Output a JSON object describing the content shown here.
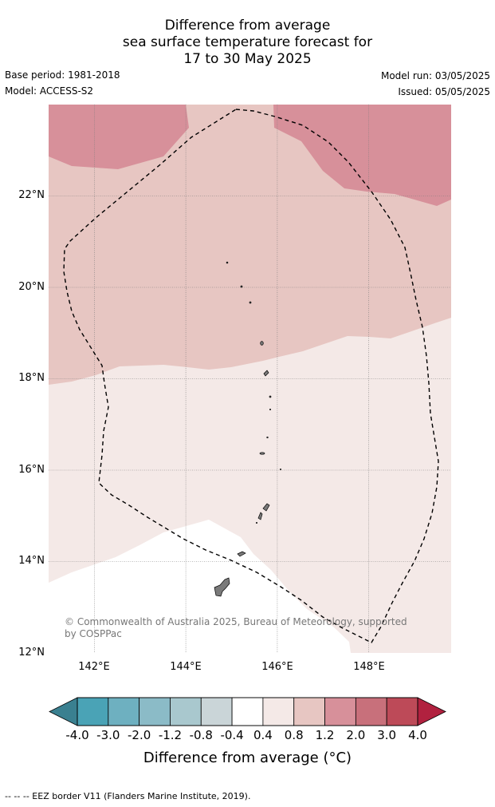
{
  "title": {
    "line1": "Difference from average",
    "line2": "sea surface temperature forecast for",
    "line3": "17 to 30 May 2025"
  },
  "meta": {
    "base_period": "Base period: 1981-2018",
    "model": "Model: ACCESS-S2",
    "model_run": "Model run: 03/05/2025",
    "issued": "Issued: 05/05/2025"
  },
  "map": {
    "lon_range": [
      141.0,
      149.8
    ],
    "lat_range": [
      12.0,
      24.0
    ],
    "lat_labels": [
      {
        "lat": 22,
        "text": "22°N"
      },
      {
        "lat": 20,
        "text": "20°N"
      },
      {
        "lat": 18,
        "text": "18°N"
      },
      {
        "lat": 16,
        "text": "16°N"
      },
      {
        "lat": 14,
        "text": "14°N"
      },
      {
        "lat": 12,
        "text": "12°N"
      }
    ],
    "lon_labels": [
      {
        "lon": 142,
        "text": "142°E"
      },
      {
        "lon": 144,
        "text": "144°E"
      },
      {
        "lon": 146,
        "text": "146°E"
      },
      {
        "lon": 148,
        "text": "148°E"
      }
    ],
    "copyright": "© Commonwealth of Australia 2025, Bureau of Meteorology, supported by COSPPac",
    "anomaly_zones": [
      {
        "range": "1.2 to 2.0",
        "color": "#d7909a",
        "where": "north-west corner and north-east"
      },
      {
        "range": "0.8 to 1.2",
        "color": "#e7c6c2",
        "where": "central band"
      },
      {
        "range": "0.4 to 0.8",
        "color": "#f4e9e7",
        "where": "south and east"
      },
      {
        "range": "-0.4 to 0.4",
        "color": "#ffffff",
        "where": "south-west"
      }
    ],
    "eez_color": "#000000",
    "land_color": "#7a7a7a"
  },
  "colorbar": {
    "title": "Difference from average (°C)",
    "ticks": [
      "-4.0",
      "-3.0",
      "-2.0",
      "-1.2",
      "-0.8",
      "-0.4",
      "0.4",
      "0.8",
      "1.2",
      "2.0",
      "3.0",
      "4.0"
    ],
    "colors": [
      "#4aa3b6",
      "#6eb0c0",
      "#8bbbc7",
      "#a9c8ce",
      "#cad5d8",
      "#ffffff",
      "#f4e9e7",
      "#e7c6c2",
      "#d7909a",
      "#c8707b",
      "#bd4a58"
    ],
    "under_color": "#3a8090",
    "over_color": "#b1213f"
  },
  "footer": "--  --  -- EEZ border V11 (Flanders Marine Institute, 2019)."
}
